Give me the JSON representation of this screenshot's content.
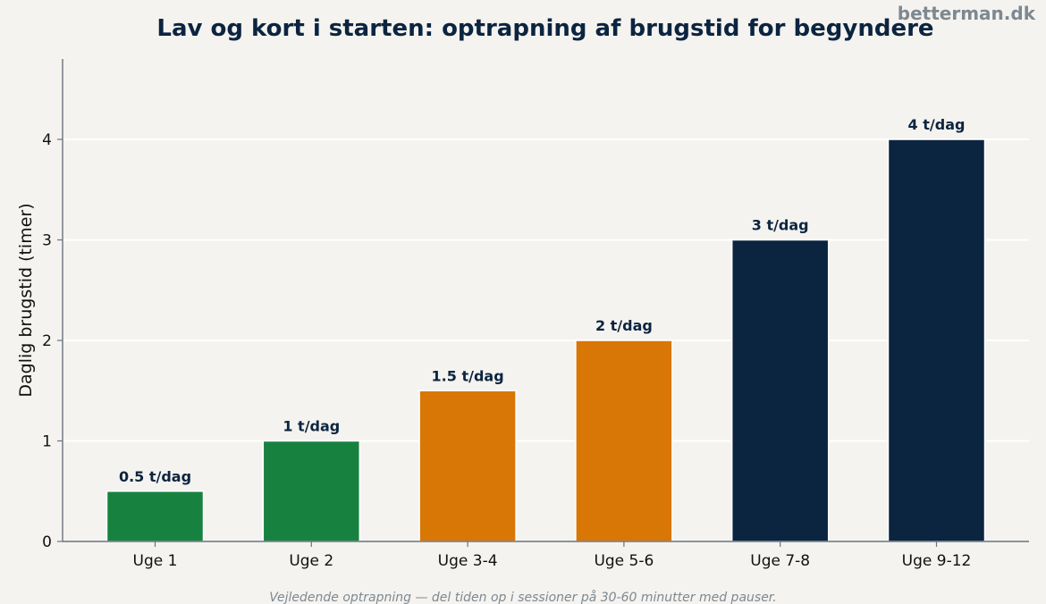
{
  "brand": "betterman.dk",
  "footnote": "Vejledende optrapning — del tiden op i sessioner på 30-60 minutter med pauser.",
  "colors": {
    "background": "#f5f3ef",
    "green": "#178240",
    "orange": "#d97706",
    "navy": "#0b2440",
    "axis": "#6b7280",
    "grid": "#ffffff"
  },
  "chart_data": {
    "type": "bar",
    "title": "Lav og kort i starten: optrapning af brugstid for begyndere",
    "xlabel": "",
    "ylabel": "Daglig brugstid (timer)",
    "categories": [
      "Uge 1",
      "Uge 2",
      "Uge 3-4",
      "Uge 5-6",
      "Uge 7-8",
      "Uge 9-12"
    ],
    "values": [
      0.5,
      1,
      1.5,
      2,
      3,
      4
    ],
    "data_labels": [
      "0.5 t/dag",
      "1 t/dag",
      "1.5 t/dag",
      "2 t/dag",
      "3 t/dag",
      "4 t/dag"
    ],
    "bar_colors": [
      "#178240",
      "#178240",
      "#d97706",
      "#d97706",
      "#0b2440",
      "#0b2440"
    ],
    "yticks": [
      0,
      1,
      2,
      3,
      4
    ],
    "ylim": [
      0,
      4.8
    ],
    "grid": true,
    "grid_axis": "y",
    "legend": "none"
  }
}
